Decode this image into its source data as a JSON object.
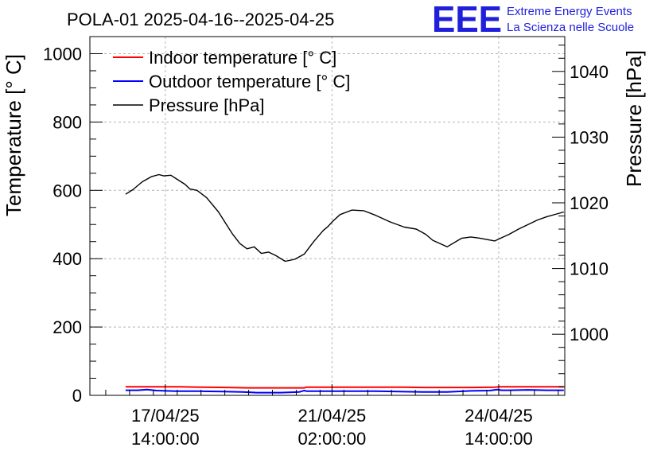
{
  "chart_data": {
    "type": "line",
    "title": "POLA-01 2025-04-16--2025-04-25",
    "logo_text": "EEE",
    "brand_lines": [
      "Extreme Energy Events",
      "La Scienza nelle Scuole"
    ],
    "left_axis": {
      "label": "Temperature [° C]",
      "ylim": [
        0,
        1050
      ],
      "major_ticks": [
        0,
        200,
        400,
        600,
        800,
        1000
      ],
      "tick_labels": [
        "0",
        "200",
        "400",
        "600",
        "800",
        "1000"
      ]
    },
    "right_axis": {
      "label": "Pressure [hPa]",
      "ylim": [
        990.7,
        1045.3
      ],
      "major_ticks": [
        1000,
        1010,
        1020,
        1030,
        1040
      ],
      "tick_labels": [
        "1000",
        "1010",
        "1020",
        "1030",
        "1040"
      ]
    },
    "x_axis": {
      "unit": "days since 2025-04-16 00:00",
      "xlim": [
        0.0,
        9.97
      ],
      "ticks": [
        {
          "value": 1.583,
          "label": [
            "17/04/25",
            "14:00:00"
          ]
        },
        {
          "value": 5.083,
          "label": [
            "21/04/25",
            "02:00:00"
          ]
        },
        {
          "value": 8.583,
          "label": [
            "24/04/25",
            "14:00:00"
          ]
        }
      ]
    },
    "grid": true,
    "legend_position": "top-left",
    "series": [
      {
        "name": "Indoor temperature [° C]",
        "color": "#ff0000",
        "axis": "left",
        "x": [
          0.75,
          1.2,
          1.5,
          1.9,
          2.3,
          2.9,
          3.35,
          3.5,
          3.9,
          4.4,
          4.5,
          4.55,
          4.95,
          5.5,
          6.0,
          6.5,
          7.0,
          7.5,
          8.0,
          8.5,
          8.6,
          8.75,
          9.0,
          9.5,
          9.95
        ],
        "values": [
          25,
          25,
          25,
          25,
          24,
          23,
          22,
          22,
          22,
          22,
          22,
          24,
          24,
          24,
          24,
          24,
          23,
          23,
          23,
          24,
          25,
          25,
          25,
          25,
          25
        ]
      },
      {
        "name": "Outdoor temperature [° C]",
        "color": "#0000ff",
        "axis": "left",
        "x": [
          0.75,
          1.0,
          1.2,
          1.4,
          1.8,
          2.3,
          2.8,
          3.2,
          3.35,
          3.5,
          4.0,
          4.4,
          4.5,
          4.55,
          4.95,
          5.5,
          6.0,
          6.5,
          7.0,
          7.5,
          8.0,
          8.4,
          8.55,
          8.65,
          8.8,
          9.2,
          9.6,
          9.95
        ],
        "values": [
          15,
          15,
          17,
          14,
          12,
          12,
          11,
          10,
          9,
          8,
          8,
          10,
          14,
          12,
          12,
          12,
          12,
          11,
          10,
          10,
          13,
          14,
          17,
          15,
          15,
          16,
          15,
          15
        ]
      },
      {
        "name": "Pressure [hPa]",
        "color": "#000000",
        "axis": "right",
        "x": [
          0.75,
          0.9,
          1.1,
          1.3,
          1.45,
          1.55,
          1.7,
          1.85,
          2.0,
          2.1,
          2.25,
          2.45,
          2.7,
          2.9,
          3.0,
          3.15,
          3.3,
          3.45,
          3.6,
          3.75,
          3.9,
          4.1,
          4.3,
          4.5,
          4.7,
          4.9,
          5.0,
          5.1,
          5.25,
          5.5,
          5.75,
          6.0,
          6.3,
          6.6,
          6.85,
          6.95,
          7.05,
          7.2,
          7.5,
          7.8,
          8.0,
          8.2,
          8.5,
          8.8,
          9.0,
          9.2,
          9.4,
          9.6,
          9.8,
          9.95
        ],
        "values": [
          1021.3,
          1022.0,
          1023.2,
          1024.0,
          1024.3,
          1024.1,
          1024.2,
          1023.5,
          1022.8,
          1022.1,
          1021.9,
          1020.8,
          1018.6,
          1016.3,
          1015.2,
          1013.8,
          1013.0,
          1013.3,
          1012.3,
          1012.5,
          1012.0,
          1011.1,
          1011.4,
          1012.2,
          1014.1,
          1015.8,
          1016.4,
          1017.2,
          1018.2,
          1018.9,
          1018.8,
          1018.1,
          1017.1,
          1016.3,
          1016.0,
          1015.6,
          1015.2,
          1014.3,
          1013.3,
          1014.6,
          1014.8,
          1014.6,
          1014.2,
          1015.2,
          1016.0,
          1016.7,
          1017.4,
          1017.9,
          1018.3,
          1018.6
        ]
      }
    ]
  }
}
